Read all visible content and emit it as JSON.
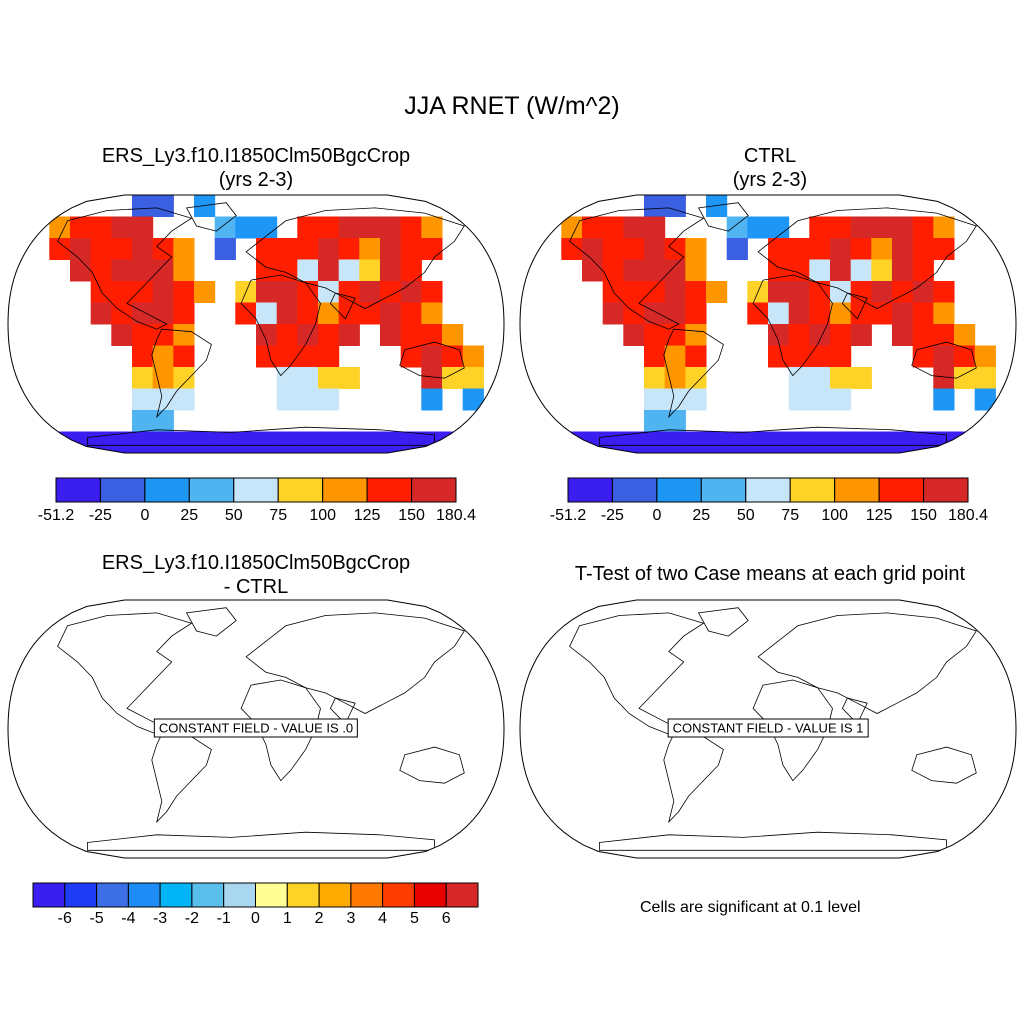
{
  "title": "JJA RNET (W/m^2)",
  "panels": [
    {
      "title_line1": "ERS_Ly3.f10.I1850Clm50BgcCrop",
      "title_line2": "(yrs 2-3)"
    },
    {
      "title_line1": "CTRL",
      "title_line2": "(yrs 2-3)"
    },
    {
      "title_line1": "ERS_Ly3.f10.I1850Clm50BgcCrop",
      "title_line2": "- CTRL",
      "message": "CONSTANT FIELD - VALUE IS .0"
    },
    {
      "title_line1": "T-Test of two Case means at each grid point",
      "message": "CONSTANT FIELD - VALUE IS 1"
    }
  ],
  "colorbar_top": {
    "colors": [
      "#3a1ff0",
      "#3a5fe0",
      "#1e96f5",
      "#50b4f0",
      "#c8e6fa",
      "#ffd228",
      "#ff9600",
      "#ff1e00",
      "#d72828"
    ],
    "labels": [
      "-51.2",
      "-25",
      "0",
      "25",
      "50",
      "75",
      "100",
      "125",
      "150",
      "180.4"
    ]
  },
  "colorbar_diff": {
    "colors": [
      "#3a1ff0",
      "#1e3cf5",
      "#3c6ee6",
      "#1e8cf5",
      "#00b4f5",
      "#5abeeb",
      "#aad7f0",
      "#ffff96",
      "#ffd228",
      "#ffaa00",
      "#ff7800",
      "#ff3c00",
      "#e60000",
      "#d72828"
    ],
    "labels": [
      "-6",
      "-5",
      "-4",
      "-3",
      "-2",
      "-1",
      "0",
      "1",
      "2",
      "3",
      "4",
      "5",
      "6"
    ]
  },
  "significance_note": "Cells are significant at 0.1 level"
}
